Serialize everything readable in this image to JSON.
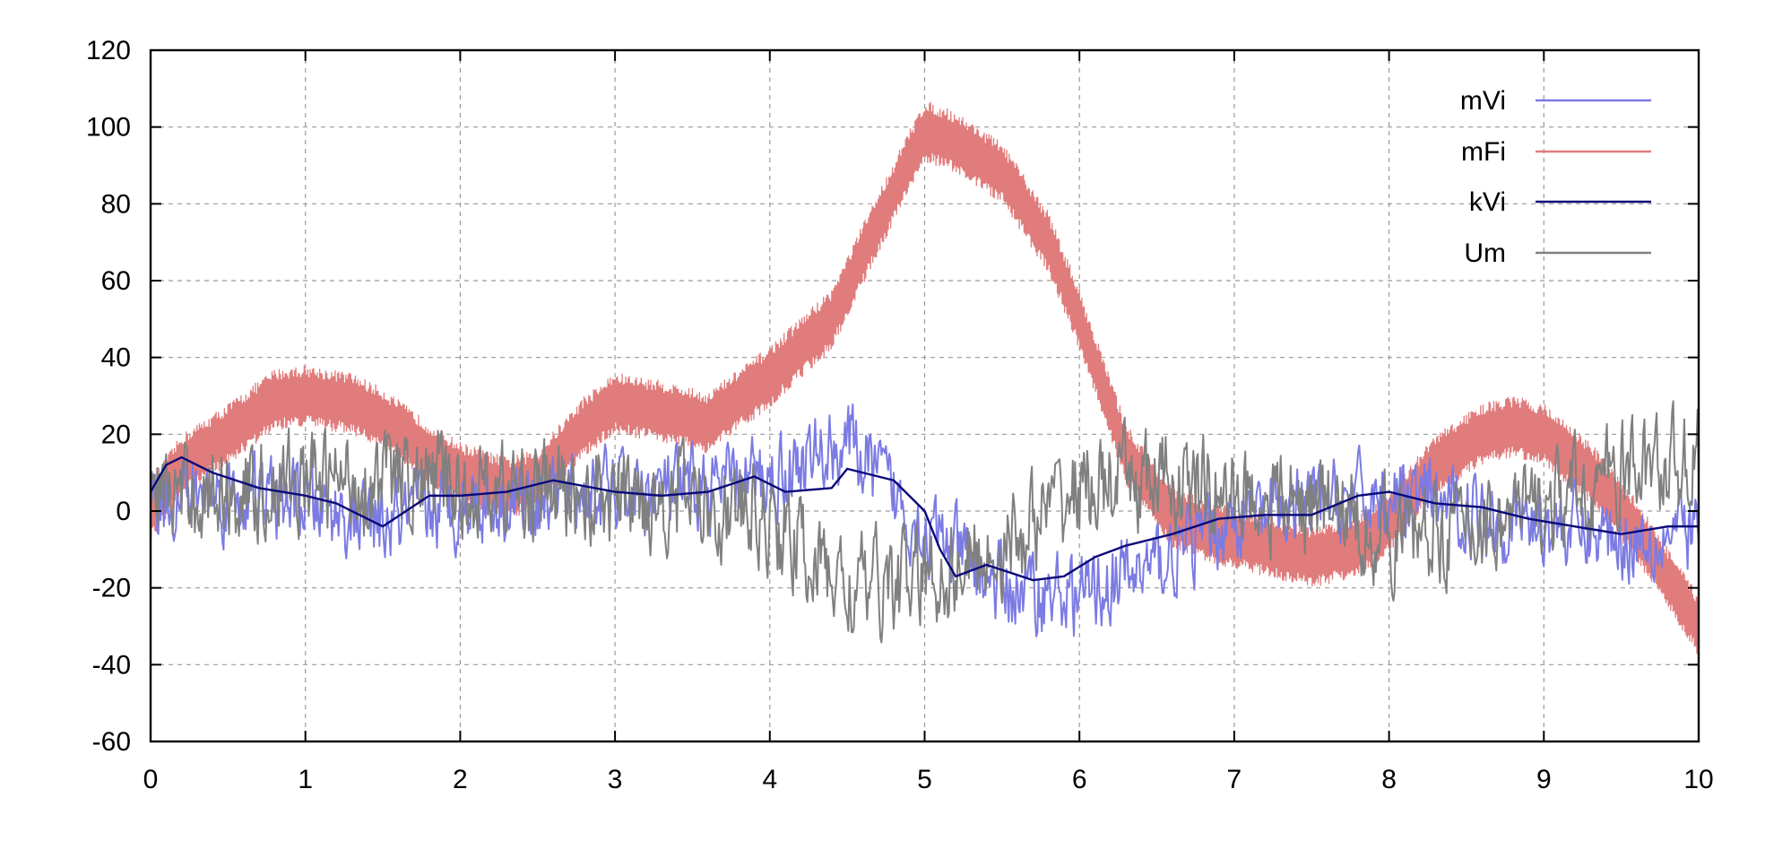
{
  "chart_data": {
    "type": "line",
    "title": "",
    "xlabel": "",
    "ylabel": "",
    "xlim": [
      0,
      10
    ],
    "ylim": [
      -60,
      120
    ],
    "x_ticks": [
      "0",
      "1",
      "2",
      "3",
      "4",
      "5",
      "6",
      "7",
      "8",
      "9",
      "10"
    ],
    "y_ticks": [
      "-60",
      "-40",
      "-20",
      "0",
      "20",
      "40",
      "60",
      "80",
      "100",
      "120"
    ],
    "grid": true,
    "legend_position": "top-right",
    "series": [
      {
        "name": "mVi",
        "color": "#7b7be3",
        "style": "noisy",
        "x": [
          0,
          0.5,
          1,
          1.5,
          2,
          2.5,
          3,
          3.5,
          4,
          4.5,
          5,
          5.5,
          6,
          6.5,
          7,
          7.5,
          8,
          8.5,
          9,
          9.5,
          10
        ],
        "y": [
          4,
          4,
          2,
          -4,
          2,
          4,
          5,
          5,
          9,
          18,
          -5,
          -20,
          -22,
          -14,
          -2,
          1,
          4,
          0,
          -3,
          -7,
          -5
        ]
      },
      {
        "name": "mFi",
        "color": "#e07c7c",
        "style": "band",
        "x": [
          0,
          0.2,
          0.5,
          0.8,
          1,
          1.3,
          1.5,
          1.8,
          2,
          2.3,
          2.5,
          2.8,
          3,
          3.3,
          3.6,
          4,
          4.4,
          4.7,
          5,
          5.2,
          5.5,
          5.8,
          6,
          6.3,
          6.6,
          6.9,
          7.2,
          7.5,
          7.8,
          8,
          8.3,
          8.6,
          8.8,
          9,
          9.3,
          9.6,
          10
        ],
        "y": [
          0,
          12,
          20,
          29,
          30,
          28,
          24,
          15,
          10,
          6,
          8,
          22,
          28,
          26,
          23,
          35,
          50,
          75,
          99,
          96,
          88,
          70,
          50,
          15,
          -2,
          -6,
          -9,
          -12,
          -9,
          -3,
          12,
          20,
          22,
          20,
          10,
          -5,
          -30
        ],
        "band_width": 16
      },
      {
        "name": "kVi",
        "color": "#0a0a7a",
        "style": "line",
        "x": [
          0,
          0.1,
          0.2,
          0.4,
          0.7,
          1,
          1.2,
          1.5,
          1.8,
          2,
          2.3,
          2.6,
          3,
          3.3,
          3.6,
          3.9,
          4.1,
          4.4,
          4.5,
          4.8,
          5,
          5.1,
          5.2,
          5.4,
          5.7,
          5.9,
          6.1,
          6.3,
          6.6,
          6.9,
          7.2,
          7.5,
          7.8,
          8,
          8.3,
          8.6,
          8.9,
          9.2,
          9.5,
          9.8,
          10
        ],
        "y": [
          5,
          12,
          14,
          10,
          6,
          4,
          2,
          -4,
          4,
          4,
          5,
          8,
          5,
          4,
          5,
          9,
          5,
          6,
          11,
          8,
          0,
          -10,
          -17,
          -14,
          -18,
          -17,
          -12,
          -9,
          -6,
          -2,
          -1,
          -1,
          4,
          5,
          2,
          1,
          -2,
          -4,
          -6,
          -4,
          -4
        ]
      },
      {
        "name": "Um",
        "color": "#808080",
        "style": "noisy",
        "x": [
          0,
          0.5,
          1,
          1.5,
          2,
          2.5,
          3,
          3.5,
          4,
          4.5,
          5,
          5.5,
          6,
          6.5,
          7,
          7.5,
          8,
          8.5,
          9,
          9.5,
          10
        ],
        "y": [
          4,
          5,
          7,
          8,
          6,
          5,
          3,
          4,
          -3,
          -20,
          -18,
          -10,
          6,
          8,
          4,
          2,
          -6,
          -4,
          0,
          10,
          14
        ]
      }
    ]
  }
}
